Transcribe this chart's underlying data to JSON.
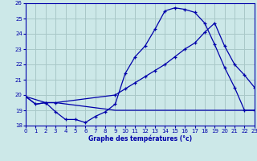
{
  "title": "Graphe des températures (°c)",
  "bg_color": "#cce8e8",
  "grid_color": "#a8c8c8",
  "line_color": "#0000aa",
  "xlim": [
    0,
    23
  ],
  "ylim": [
    18,
    26
  ],
  "yticks": [
    18,
    19,
    20,
    21,
    22,
    23,
    24,
    25,
    26
  ],
  "xticks": [
    0,
    1,
    2,
    3,
    4,
    5,
    6,
    7,
    8,
    9,
    10,
    11,
    12,
    13,
    14,
    15,
    16,
    17,
    18,
    19,
    20,
    21,
    22,
    23
  ],
  "series1_x": [
    0,
    1,
    2,
    3,
    4,
    5,
    6,
    7,
    8,
    9,
    10,
    11,
    12,
    13,
    14,
    15,
    16,
    17,
    18,
    19,
    20,
    21,
    22,
    23
  ],
  "series1_y": [
    19.9,
    19.4,
    19.5,
    18.9,
    18.4,
    18.4,
    18.2,
    18.6,
    18.9,
    19.4,
    21.4,
    22.5,
    23.2,
    24.3,
    25.5,
    25.7,
    25.6,
    25.4,
    24.7,
    23.3,
    21.8,
    20.5,
    19.0,
    19.0
  ],
  "series2_x": [
    0,
    2,
    3,
    9,
    10,
    11,
    12,
    13,
    14,
    15,
    16,
    17,
    18,
    19,
    20,
    21,
    22,
    23
  ],
  "series2_y": [
    19.9,
    19.5,
    19.5,
    20.0,
    20.4,
    20.8,
    21.2,
    21.6,
    22.0,
    22.5,
    23.0,
    23.4,
    24.1,
    24.7,
    23.2,
    22.0,
    21.3,
    20.5
  ],
  "series3_x": [
    0,
    1,
    2,
    3,
    9,
    19,
    20,
    21,
    22,
    23
  ],
  "series3_y": [
    19.9,
    19.4,
    19.5,
    19.5,
    19.0,
    19.0,
    19.0,
    19.0,
    19.0,
    19.0
  ]
}
